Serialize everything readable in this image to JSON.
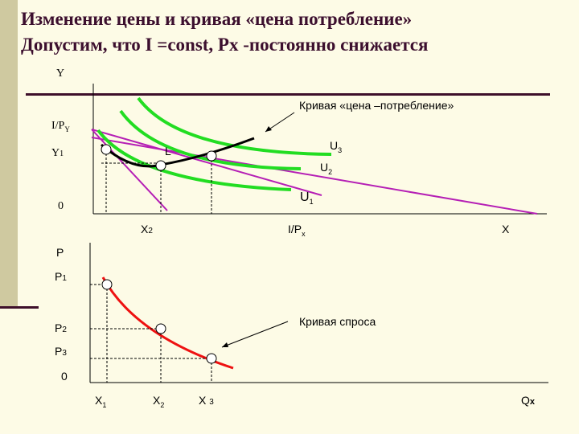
{
  "title": {
    "line1": "Изменение цены и кривая «цена потребление»",
    "line2": "Допустим, что I =const, Px -постоянно снижается"
  },
  "top_graph": {
    "y_axis": "Y",
    "budget_intercept_y": "I/P",
    "budget_intercept_y_sub": "Y",
    "y1_label": "Y",
    "y1_sub": "1",
    "origin": "0",
    "x2_label": "X",
    "x2_sub": "2",
    "budget_intercept_x": "I/P",
    "budget_intercept_x_sub": "x",
    "x_axis": "X",
    "point_L": "L",
    "pcc_annotation": "Кривая «цена –потребление»",
    "u1": "U",
    "u1_sub": "1",
    "u2": "U",
    "u2_sub": "2",
    "u3": "U",
    "u3_sub": "3"
  },
  "bottom_graph": {
    "y_axis": "P",
    "p1": "P",
    "p1_sub": "1",
    "p2": "P",
    "p2_sub": "2",
    "p3": "P",
    "p3_sub": "3",
    "origin": "0",
    "x1": "X",
    "x1_sub": "1",
    "x2": "X",
    "x2_sub": "2",
    "x3": "X",
    "x3_sub": "3",
    "x_axis": "Q",
    "x_axis_sub": "x",
    "demand_annotation": "Кривая спроса"
  },
  "colors": {
    "title": "#3c0f2e",
    "budget_lines": "#b51fb5",
    "indifference": "#22dd22",
    "pcc_curve": "#000000",
    "demand_curve": "#ee1111"
  }
}
